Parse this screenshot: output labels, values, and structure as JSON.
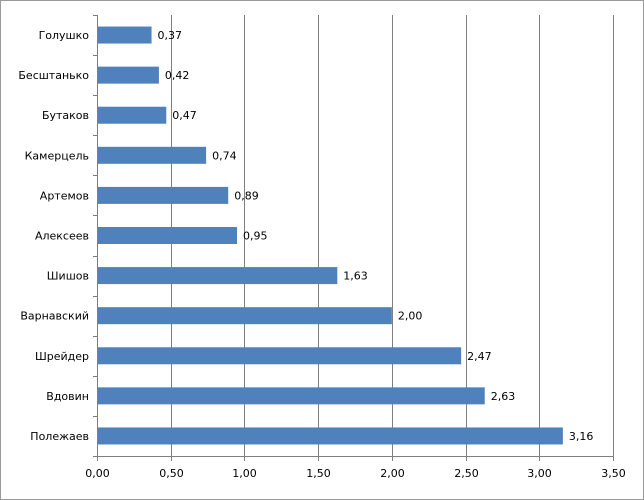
{
  "chart_data": {
    "type": "bar",
    "orientation": "horizontal",
    "categories": [
      "Голушко",
      "Бесштанько",
      "Бутаков",
      "Камерцель",
      "Артемов",
      "Алексеев",
      "Шишов",
      "Варнавский",
      "Шрейдер",
      "Вдовин",
      "Полежаев"
    ],
    "values": [
      0.37,
      0.42,
      0.47,
      0.74,
      0.89,
      0.95,
      1.63,
      2.0,
      2.47,
      2.63,
      3.16
    ],
    "value_labels": [
      "0,37",
      "0,42",
      "0,47",
      "0,74",
      "0,89",
      "0,95",
      "1,63",
      "2,00",
      "2,47",
      "2,63",
      "3,16"
    ],
    "x_ticks": [
      0,
      0.5,
      1,
      1.5,
      2,
      2.5,
      3,
      3.5
    ],
    "x_tick_labels": [
      "0,00",
      "0,50",
      "1,00",
      "1,50",
      "2,00",
      "2,50",
      "3,00",
      "3,50"
    ],
    "xlim": [
      0,
      3.5
    ],
    "grid": "vertical",
    "legend": "none",
    "title": "",
    "xlabel": "",
    "ylabel": "",
    "colors": {
      "bar": "#4f81bd",
      "grid": "#7f7f7f",
      "axis": "#7f7f7f"
    }
  }
}
